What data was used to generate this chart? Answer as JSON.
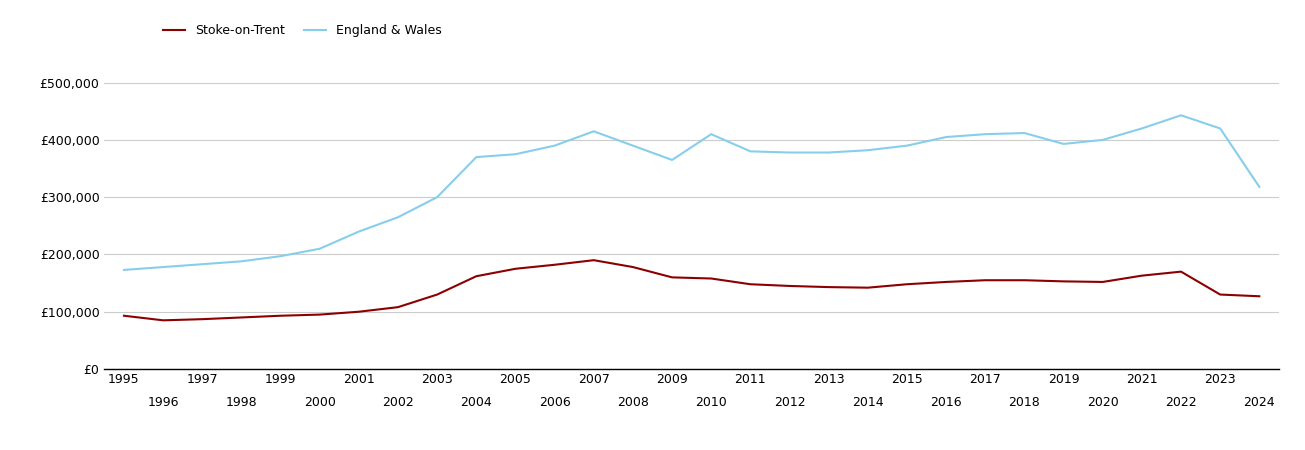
{
  "title": "",
  "legend": [
    "Stoke-on-Trent",
    "England & Wales"
  ],
  "stoke_color": "#8B0000",
  "ew_color": "#87CEEB",
  "background_color": "#ffffff",
  "grid_color": "#cccccc",
  "ylim": [
    0,
    550000
  ],
  "yticks": [
    0,
    100000,
    200000,
    300000,
    400000,
    500000
  ],
  "ytick_labels": [
    "£0",
    "£100,000",
    "£200,000",
    "£300,000",
    "£400,000",
    "£500,000"
  ],
  "years": [
    1995,
    1996,
    1997,
    1998,
    1999,
    2000,
    2001,
    2002,
    2003,
    2004,
    2005,
    2006,
    2007,
    2008,
    2009,
    2010,
    2011,
    2012,
    2013,
    2014,
    2015,
    2016,
    2017,
    2018,
    2019,
    2020,
    2021,
    2022,
    2023,
    2024
  ],
  "stoke_values": [
    93000,
    85000,
    87000,
    90000,
    93000,
    95000,
    100000,
    108000,
    130000,
    162000,
    175000,
    182000,
    190000,
    178000,
    160000,
    158000,
    148000,
    145000,
    143000,
    142000,
    148000,
    152000,
    155000,
    155000,
    153000,
    152000,
    163000,
    170000,
    130000,
    127000
  ],
  "ew_values": [
    173000,
    178000,
    183000,
    188000,
    197000,
    210000,
    240000,
    265000,
    300000,
    370000,
    375000,
    390000,
    415000,
    390000,
    365000,
    410000,
    380000,
    378000,
    378000,
    382000,
    390000,
    405000,
    410000,
    412000,
    393000,
    400000,
    420000,
    443000,
    420000,
    318000
  ]
}
